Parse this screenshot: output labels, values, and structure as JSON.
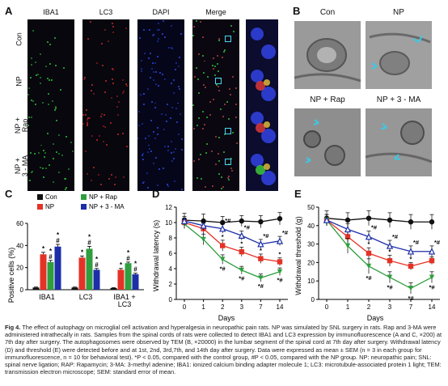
{
  "panels": {
    "A": {
      "label": "A",
      "columns": [
        "IBA1",
        "LC3",
        "DAPI",
        "Merge"
      ],
      "rows": [
        "Con",
        "NP",
        "NP +\nRap",
        "NP +\n3 - MA"
      ]
    },
    "B": {
      "label": "B",
      "titles": [
        "Con",
        "NP",
        "NP + Rap",
        "NP + 3 - MA"
      ]
    },
    "C": "C",
    "D": "D",
    "E": "E"
  },
  "chart_data": [
    {
      "panel": "C",
      "type": "bar",
      "ylabel": "Positive cells (%)",
      "ylim": [
        0,
        60
      ],
      "yticks": [
        0,
        20,
        40,
        60
      ],
      "categories": [
        "IBA1",
        "LC3",
        "IBA1 +\nLC3"
      ],
      "series": [
        {
          "name": "Con",
          "color": "#111111",
          "values": [
            2,
            2,
            1.5
          ],
          "errors": [
            0.4,
            0.4,
            0.3
          ],
          "annot": [
            "",
            "",
            ""
          ]
        },
        {
          "name": "NP",
          "color": "#e53226",
          "values": [
            32,
            29,
            18
          ],
          "errors": [
            1.8,
            1.5,
            1.2
          ],
          "annot": [
            "*",
            "*",
            "*"
          ]
        },
        {
          "name": "NP + Rap",
          "color": "#2e9e3e",
          "values": [
            25,
            37,
            24
          ],
          "errors": [
            1.5,
            2.2,
            1.0
          ],
          "annot": [
            "*\n#",
            "*\n#",
            "*\n#"
          ]
        },
        {
          "name": "NP + 3 - MA",
          "color": "#1c2fa8",
          "values": [
            39,
            18,
            14
          ],
          "errors": [
            2.0,
            1.2,
            0.9
          ],
          "annot": [
            "*\n#",
            "*\n#",
            "*\n#"
          ]
        }
      ],
      "legend": "top, two columns"
    },
    {
      "panel": "D",
      "type": "line",
      "ylabel": "Withdrawal latency (s)",
      "xlabel": "Days",
      "x": [
        0,
        1,
        2,
        3,
        7,
        14
      ],
      "ylim": [
        0,
        12
      ],
      "yticks": [
        0,
        2,
        4,
        6,
        8,
        10,
        12
      ],
      "series": [
        {
          "name": "Con",
          "color": "#111111",
          "marker": "circle",
          "values": [
            10.3,
            10.2,
            10.0,
            10.2,
            10.1,
            10.5
          ],
          "errors": [
            0.9,
            0.9,
            0.8,
            0.7,
            0.8,
            0.8
          ],
          "annot": [
            "",
            "",
            "",
            "",
            "",
            ""
          ]
        },
        {
          "name": "NP",
          "color": "#e53226",
          "marker": "square",
          "values": [
            10.0,
            9.2,
            7.0,
            6.2,
            5.3,
            4.9
          ],
          "errors": [
            0.6,
            0.7,
            0.7,
            0.6,
            0.6,
            0.5
          ],
          "annot": [
            "",
            "",
            "*",
            "*",
            "*",
            "*"
          ]
        },
        {
          "name": "NP + Rap",
          "color": "#2e9e3e",
          "marker": "triangle-down",
          "values": [
            9.8,
            7.8,
            5.2,
            3.8,
            2.8,
            3.6
          ],
          "errors": [
            0.6,
            0.7,
            0.6,
            0.5,
            0.5,
            0.5
          ],
          "annot": [
            "",
            "",
            "*#",
            "*#",
            "*#",
            "*#"
          ]
        },
        {
          "name": "NP + 3 - MA",
          "color": "#1c2fa8",
          "marker": "triangle-up",
          "values": [
            10.2,
            9.6,
            9.2,
            8.3,
            7.2,
            7.6
          ],
          "errors": [
            0.6,
            0.6,
            0.6,
            0.6,
            0.6,
            0.6
          ],
          "annot": [
            "",
            "",
            "*#",
            "*#",
            "*#",
            "*#"
          ]
        }
      ]
    },
    {
      "panel": "E",
      "type": "line",
      "ylabel": "Withdrawal threshold (g)",
      "xlabel": "Days",
      "x": [
        0,
        1,
        2,
        3,
        7,
        14
      ],
      "ylim": [
        0,
        50
      ],
      "yticks": [
        0,
        10,
        20,
        30,
        40,
        50
      ],
      "series": [
        {
          "name": "Con",
          "color": "#111111",
          "marker": "circle",
          "values": [
            44,
            43,
            44,
            43,
            42,
            42
          ],
          "errors": [
            4,
            4,
            4,
            4,
            4,
            4
          ],
          "annot": [
            "",
            "",
            "",
            "",
            "",
            ""
          ]
        },
        {
          "name": "NP",
          "color": "#e53226",
          "marker": "square",
          "values": [
            43,
            34,
            25,
            21,
            18,
            21
          ],
          "errors": [
            3,
            3,
            3,
            3,
            2,
            2
          ],
          "annot": [
            "",
            "",
            "*",
            "*",
            "*",
            "*"
          ]
        },
        {
          "name": "NP + Rap",
          "color": "#2e9e3e",
          "marker": "triangle-down",
          "values": [
            43,
            29,
            18,
            12,
            6,
            12
          ],
          "errors": [
            3,
            4,
            4,
            3,
            3,
            3
          ],
          "annot": [
            "",
            "",
            "*#",
            "*#",
            "*#",
            "*#"
          ]
        },
        {
          "name": "NP + 3 - MA",
          "color": "#1c2fa8",
          "marker": "triangle-up",
          "values": [
            43,
            38,
            34,
            29,
            26,
            26
          ],
          "errors": [
            3,
            3,
            3,
            3,
            3,
            3
          ],
          "annot": [
            "",
            "",
            "*#",
            "*#",
            "*#",
            "*#"
          ]
        }
      ]
    }
  ],
  "caption": {
    "head": "Fig 4.",
    "text": "The effect of autophagy on microglial cell activation and hyperalgesia in neuropathic pain rats. NP was simulated by SNL surgery in rats. Rap and 3-MA were administered intrathecally in rats. Samples from the spinal cords of rats were collected to detect IBA1 and LC3 expression by immunofluorescence (A and C, ×200) at 7th day after surgery. The autophagosomes were observed by TEM (B, ×20000) in the lumbar segment of the spinal cord at 7th day after surgery. Withdrawal latency (D) and threshold (E) were detected before and at 1st, 2nd, 3rd,7th, and 14th day after surgery. Data were expressed as mean ± SEM (n = 3 in each group for immunofluorescence, n = 10 for behavioral test). *P < 0.05, compared with the control group, #P < 0.05, compared with the NP group. NP: neuropathic pain; SNL: spinal nerve ligation; RAP: Rapamycin; 3-MA: 3-methyl adenine; IBA1: ionized calcium binding adapter molecule 1; LC3: microtubule-associated protein 1 light; TEM: transmission electron microscope; SEM: standard error of mean."
  }
}
